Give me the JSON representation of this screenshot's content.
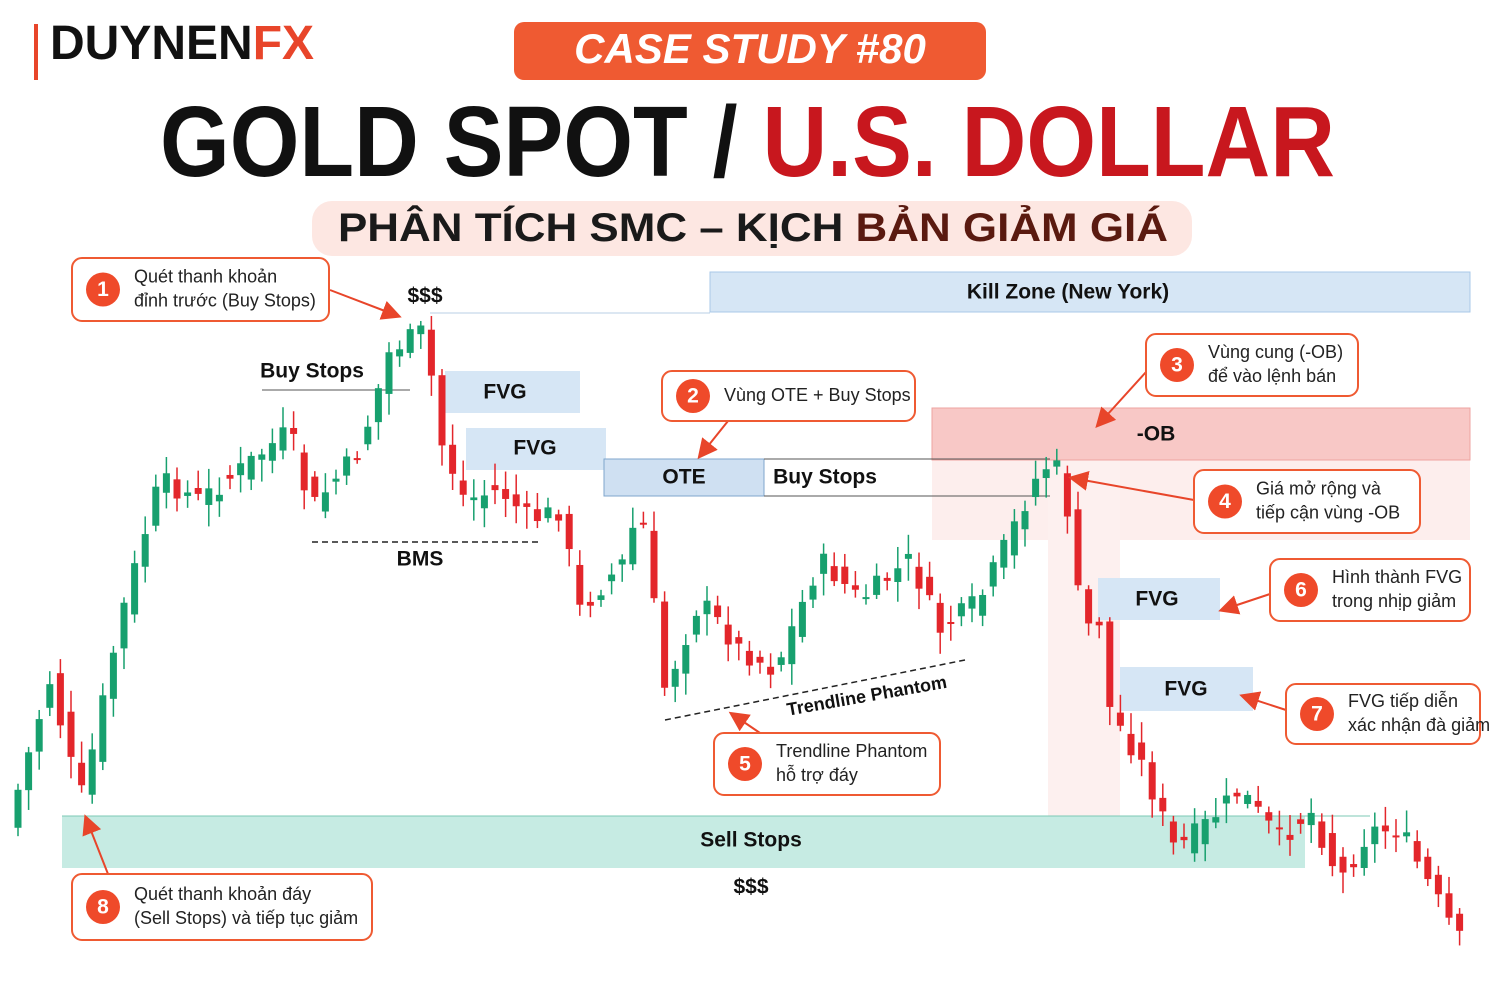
{
  "brand": {
    "name": "DUYNEN",
    "accent": "FX"
  },
  "badge": "CASE STUDY #80",
  "title": {
    "main": "GOLD SPOT / ",
    "accent": "U.S. DOLLAR"
  },
  "subtitle": {
    "main": "PHÂN TÍCH SMC – KỊCH ",
    "accent": "BẢN GIẢM GIÁ"
  },
  "zones": {
    "kill_zone": "Kill Zone (New York)",
    "order_block": "-OB",
    "fvg": [
      "FVG",
      "FVG",
      "FVG",
      "FVG"
    ],
    "ote": "OTE",
    "buy_stops": [
      "Buy Stops",
      "Buy Stops"
    ],
    "sell_stops": "Sell Stops",
    "liquidity": [
      "$$$",
      "$$$"
    ],
    "bms": "BMS",
    "trendline": "Trendline Phantom"
  },
  "callouts": [
    {
      "number": "1",
      "lines": [
        "Quét thanh khoản",
        "đỉnh trước (Buy Stops)"
      ]
    },
    {
      "number": "2",
      "lines": [
        "Vùng OTE + Buy Stops"
      ]
    },
    {
      "number": "3",
      "lines": [
        "Vùng cung (-OB)",
        "để vào lệnh bán"
      ]
    },
    {
      "number": "4",
      "lines": [
        "Giá mở rộng và",
        "tiếp cận vùng -OB"
      ]
    },
    {
      "number": "5",
      "lines": [
        "Trendline Phantom",
        "hỗ trợ đáy"
      ]
    },
    {
      "number": "6",
      "lines": [
        "Hình thành FVG",
        "trong nhịp giảm"
      ]
    },
    {
      "number": "7",
      "lines": [
        "FVG tiếp diễn",
        "xác nhận đà giảm"
      ]
    },
    {
      "number": "8",
      "lines": [
        "Quét thanh khoản đáy",
        "(Sell Stops) và tiếp tục giảm"
      ]
    }
  ]
}
